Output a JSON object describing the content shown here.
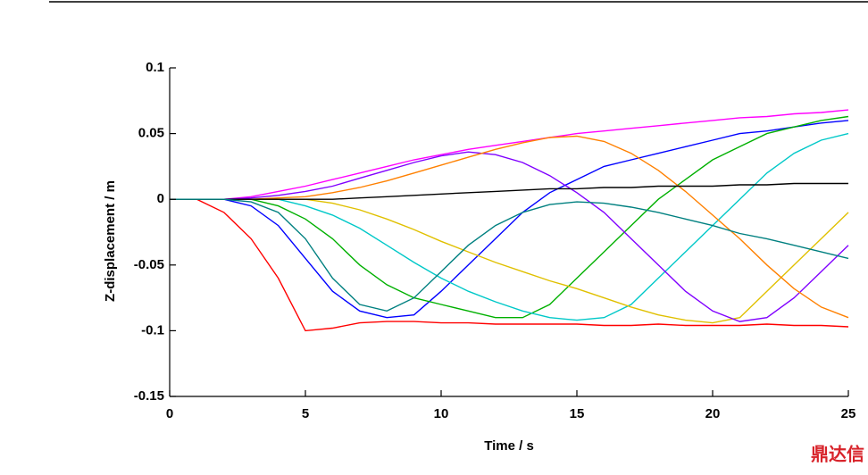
{
  "chart_data": {
    "type": "line",
    "xlabel": "Time / s",
    "ylabel": "Z-displacement / m",
    "xlim": [
      0,
      25
    ],
    "xticks": [
      0,
      5,
      10,
      15,
      20,
      25
    ],
    "ylim": [
      -0.15,
      0.1
    ],
    "yticks": [
      0.1,
      0.05,
      0,
      -0.05,
      -0.1,
      -0.15
    ],
    "x": [
      0,
      1,
      2,
      3,
      4,
      5,
      6,
      7,
      8,
      9,
      10,
      11,
      12,
      13,
      14,
      15,
      16,
      17,
      18,
      19,
      20,
      21,
      22,
      23,
      24,
      25
    ],
    "series": [
      {
        "color": "#ff00ff",
        "values": [
          0,
          0,
          0,
          0.002,
          0.006,
          0.01,
          0.015,
          0.02,
          0.025,
          0.03,
          0.034,
          0.038,
          0.041,
          0.044,
          0.047,
          0.05,
          0.052,
          0.054,
          0.056,
          0.058,
          0.06,
          0.062,
          0.063,
          0.065,
          0.066,
          0.068
        ]
      },
      {
        "color": "#ff0000",
        "values": [
          0,
          0,
          -0.01,
          -0.03,
          -0.06,
          -0.1,
          -0.098,
          -0.094,
          -0.093,
          -0.093,
          -0.094,
          -0.094,
          -0.095,
          -0.095,
          -0.095,
          -0.095,
          -0.096,
          -0.096,
          -0.095,
          -0.096,
          -0.096,
          -0.096,
          -0.095,
          -0.096,
          -0.096,
          -0.097
        ]
      },
      {
        "color": "#0000ff",
        "values": [
          0,
          0,
          0,
          -0.005,
          -0.02,
          -0.045,
          -0.07,
          -0.085,
          -0.09,
          -0.088,
          -0.07,
          -0.05,
          -0.03,
          -0.01,
          0.005,
          0.015,
          0.025,
          0.03,
          0.035,
          0.04,
          0.045,
          0.05,
          0.052,
          0.055,
          0.058,
          0.06
        ]
      },
      {
        "color": "#00b000",
        "values": [
          0,
          0,
          0,
          0,
          -0.005,
          -0.015,
          -0.03,
          -0.05,
          -0.065,
          -0.075,
          -0.08,
          -0.085,
          -0.09,
          -0.09,
          -0.08,
          -0.06,
          -0.04,
          -0.02,
          0,
          0.015,
          0.03,
          0.04,
          0.05,
          0.055,
          0.06,
          0.063
        ]
      },
      {
        "color": "#00c8c8",
        "values": [
          0,
          0,
          0,
          0,
          0,
          -0.005,
          -0.012,
          -0.022,
          -0.035,
          -0.048,
          -0.06,
          -0.07,
          -0.078,
          -0.085,
          -0.09,
          -0.092,
          -0.09,
          -0.08,
          -0.06,
          -0.04,
          -0.02,
          0,
          0.02,
          0.035,
          0.045,
          0.05
        ]
      },
      {
        "color": "#e0c000",
        "values": [
          0,
          0,
          0,
          0,
          0,
          0,
          -0.003,
          -0.008,
          -0.015,
          -0.023,
          -0.032,
          -0.04,
          -0.048,
          -0.055,
          -0.062,
          -0.068,
          -0.075,
          -0.082,
          -0.088,
          -0.092,
          -0.094,
          -0.09,
          -0.07,
          -0.05,
          -0.03,
          -0.01
        ]
      },
      {
        "color": "#8000ff",
        "values": [
          0,
          0,
          0,
          0.001,
          0.003,
          0.006,
          0.01,
          0.016,
          0.022,
          0.028,
          0.033,
          0.036,
          0.034,
          0.028,
          0.018,
          0.005,
          -0.01,
          -0.03,
          -0.05,
          -0.07,
          -0.085,
          -0.093,
          -0.09,
          -0.075,
          -0.055,
          -0.035
        ]
      },
      {
        "color": "#ff8000",
        "values": [
          0,
          0,
          0,
          0,
          0.001,
          0.002,
          0.005,
          0.009,
          0.014,
          0.02,
          0.026,
          0.032,
          0.038,
          0.043,
          0.047,
          0.048,
          0.044,
          0.035,
          0.022,
          0.006,
          -0.012,
          -0.03,
          -0.05,
          -0.068,
          -0.082,
          -0.09
        ]
      },
      {
        "color": "#000000",
        "values": [
          0,
          0,
          0,
          0,
          0,
          0,
          0,
          0.001,
          0.002,
          0.003,
          0.004,
          0.005,
          0.006,
          0.007,
          0.008,
          0.008,
          0.009,
          0.009,
          0.01,
          0.01,
          0.01,
          0.011,
          0.011,
          0.012,
          0.012,
          0.012
        ]
      },
      {
        "color": "#008080",
        "values": [
          0,
          0,
          0,
          -0.002,
          -0.01,
          -0.03,
          -0.06,
          -0.08,
          -0.085,
          -0.075,
          -0.055,
          -0.035,
          -0.02,
          -0.01,
          -0.004,
          -0.002,
          -0.003,
          -0.006,
          -0.01,
          -0.015,
          -0.02,
          -0.026,
          -0.03,
          -0.035,
          -0.04,
          -0.045
        ]
      }
    ],
    "watermark": "鼎达信"
  }
}
